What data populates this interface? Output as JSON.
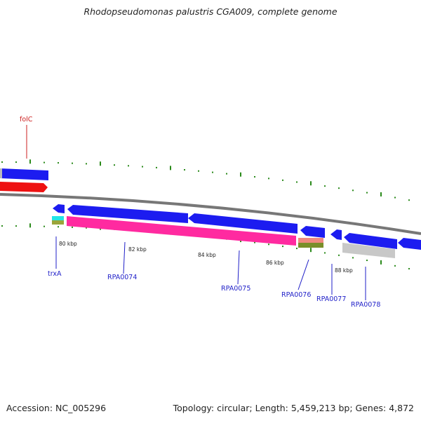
{
  "title": "Rhodopseudomonas palustris CGA009, complete genome",
  "footer": {
    "accession": "Accession: NC_005296",
    "summary": "Topology: circular; Length: 5,459,213 bp; Genes: 4,872"
  },
  "colors": {
    "cds_forward": "#1c1cf0",
    "cds_reverse": "#1c1cf0",
    "fol_red": "#ee1111",
    "magenta": "#ff2aa0",
    "cyan": "#22e6e6",
    "salmon": "#f08a80",
    "olive": "#7a8f2a",
    "grey": "#c8c8c8",
    "tick_green": "#2a8a1a",
    "backbone": "#777777",
    "label_blue": "#1f1fc8",
    "label_red": "#cc1f1f"
  },
  "scale_labels": [
    "80 kbp",
    "82 kbp",
    "84 kbp",
    "86 kbp",
    "88 kbp"
  ],
  "gene_labels": [
    "folC",
    "trxA",
    "RPA0074",
    "RPA0075",
    "RPA0076",
    "RPA0077",
    "RPA0078"
  ]
}
